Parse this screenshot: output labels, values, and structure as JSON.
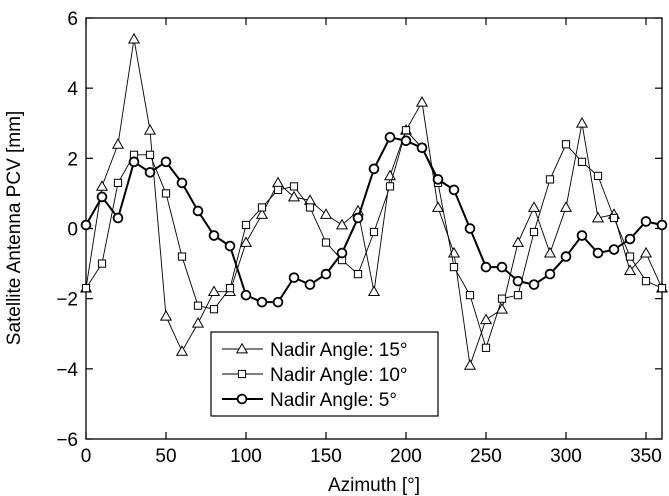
{
  "chart_data": {
    "type": "line",
    "title": "",
    "xlabel": "Azimuth [°]",
    "ylabel": "Satellite Antenna PCV [mm]",
    "xlim": [
      0,
      360
    ],
    "ylim": [
      -6,
      6
    ],
    "xticks": [
      0,
      50,
      100,
      150,
      200,
      250,
      300,
      350
    ],
    "yticks": [
      -6,
      -4,
      -2,
      0,
      2,
      4,
      6
    ],
    "grid": false,
    "legend_position": "bottom-left",
    "x": [
      0,
      10,
      20,
      30,
      40,
      50,
      60,
      70,
      80,
      90,
      100,
      110,
      120,
      130,
      140,
      150,
      160,
      170,
      180,
      190,
      200,
      210,
      220,
      230,
      240,
      250,
      260,
      270,
      280,
      290,
      300,
      310,
      320,
      330,
      340,
      350,
      360
    ],
    "series": [
      {
        "name": "Nadir Angle: 15°",
        "marker": "triangle",
        "values": [
          -1.7,
          1.2,
          2.4,
          5.4,
          2.8,
          -2.5,
          -3.5,
          -2.7,
          -1.8,
          -1.8,
          -0.4,
          0.4,
          1.3,
          0.9,
          0.8,
          0.4,
          0.1,
          0.5,
          -1.8,
          1.5,
          2.8,
          3.6,
          0.6,
          -0.7,
          -3.9,
          -2.6,
          -2.3,
          -0.4,
          0.6,
          -0.7,
          0.6,
          3.0,
          0.3,
          0.4,
          -1.2,
          -0.7,
          -1.7
        ]
      },
      {
        "name": "Nadir Angle: 10°",
        "marker": "square",
        "values": [
          -1.7,
          -1.0,
          1.3,
          2.1,
          2.1,
          1.0,
          -0.8,
          -2.2,
          -2.3,
          -1.7,
          0.1,
          0.6,
          1.1,
          1.2,
          0.6,
          -0.4,
          -0.9,
          -1.3,
          -0.1,
          1.2,
          2.8,
          2.3,
          1.3,
          -1.1,
          -1.9,
          -3.4,
          -2.0,
          -1.9,
          -0.1,
          1.4,
          2.4,
          1.9,
          1.5,
          0.3,
          -0.8,
          -1.5,
          -1.7
        ]
      },
      {
        "name": "Nadir Angle: 5°",
        "marker": "circle",
        "values": [
          0.1,
          0.9,
          0.3,
          1.9,
          1.6,
          1.9,
          1.3,
          0.5,
          -0.2,
          -0.5,
          -1.9,
          -2.1,
          -2.1,
          -1.4,
          -1.6,
          -1.3,
          -0.7,
          0.3,
          1.7,
          2.6,
          2.5,
          2.3,
          1.4,
          1.1,
          0.0,
          -1.1,
          -1.1,
          -1.5,
          -1.6,
          -1.3,
          -0.8,
          -0.2,
          -0.7,
          -0.6,
          -0.3,
          0.2,
          0.1
        ]
      }
    ]
  }
}
